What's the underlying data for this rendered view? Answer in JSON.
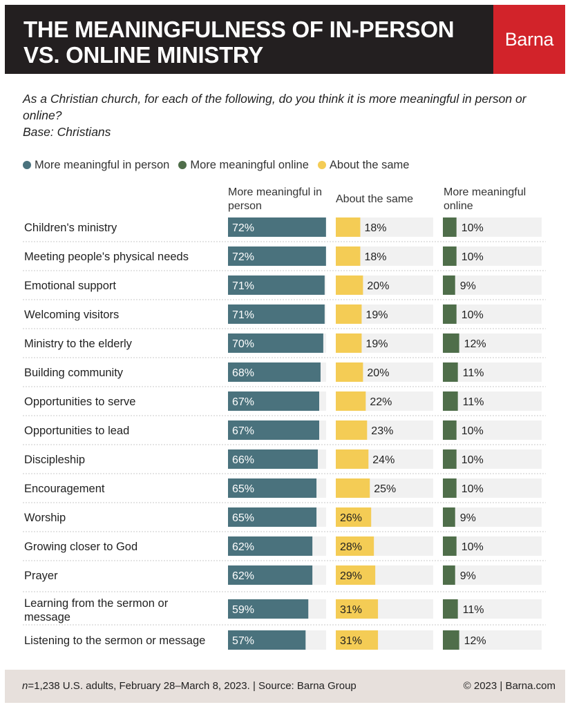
{
  "header": {
    "title": "The meaningfulness of in-person vs. online ministry",
    "brand": "Barna"
  },
  "question": {
    "text": "As a Christian church, for each of the following, do you think it is more meaningful in person or online?",
    "base": "Base: Christians"
  },
  "legend": [
    {
      "label": "More meaningful in person",
      "color": "#4a727d"
    },
    {
      "label": "More meaningful online",
      "color": "#4f6e4a"
    },
    {
      "label": "About the same",
      "color": "#f4cc55"
    }
  ],
  "columns": {
    "in_person": "More meaningful in person",
    "same": "About the same",
    "online": "More meaningful online"
  },
  "footer": {
    "n_label": "n",
    "sample": "=1,238 U.S. adults, February 28–March 8, 2023. | Source: Barna Group",
    "copyright": "© 2023 | Barna.com"
  },
  "chart_data": {
    "type": "bar",
    "title": "The meaningfulness of in-person vs. online ministry",
    "categories": [
      "Children's ministry",
      "Meeting people's physical needs",
      "Emotional support",
      "Welcoming visitors",
      "Ministry to the elderly",
      "Building community",
      "Opportunities to serve",
      "Opportunities to lead",
      "Discipleship",
      "Encouragement",
      "Worship",
      "Growing closer to God",
      "Prayer",
      "Learning from the sermon or message",
      "Listening to the sermon or message"
    ],
    "series": [
      {
        "name": "More meaningful in person",
        "color": "#4a727d",
        "values": [
          72,
          72,
          71,
          71,
          70,
          68,
          67,
          67,
          66,
          65,
          65,
          62,
          62,
          59,
          57
        ]
      },
      {
        "name": "About the same",
        "color": "#f4cc55",
        "values": [
          18,
          18,
          20,
          19,
          19,
          20,
          22,
          23,
          24,
          25,
          26,
          28,
          29,
          31,
          31
        ]
      },
      {
        "name": "More meaningful online",
        "color": "#4f6e4a",
        "values": [
          10,
          10,
          9,
          10,
          12,
          11,
          11,
          10,
          10,
          10,
          9,
          10,
          9,
          11,
          12
        ]
      }
    ],
    "ylim": [
      0,
      100
    ],
    "value_suffix": "%"
  }
}
